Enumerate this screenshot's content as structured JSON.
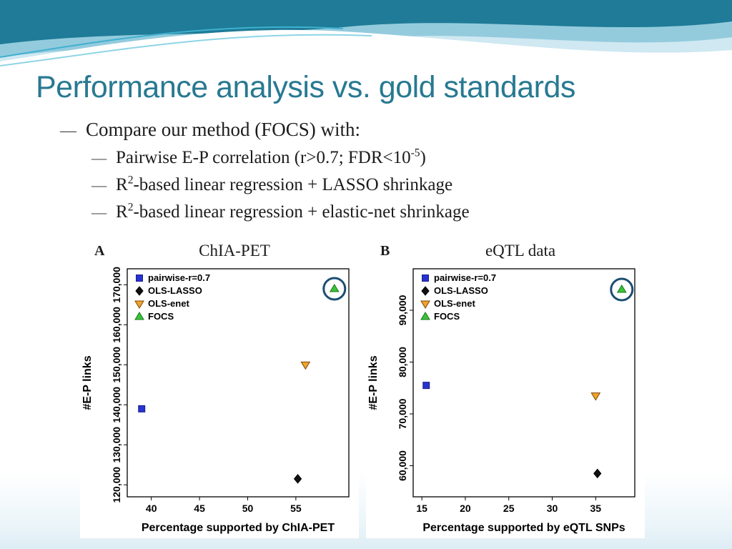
{
  "slide": {
    "title": "Performance analysis vs. gold standards",
    "bullet_char": "—",
    "bullet1": "Compare our method (FOCS) with:",
    "sub_bullets": {
      "b1": {
        "pre": "Pairwise E-P correlation (r>0.7; FDR<10",
        "sup": "-5",
        "post": ")"
      },
      "b2": {
        "pre": "R",
        "sup": "2",
        "post": "-based linear regression + LASSO shrinkage"
      },
      "b3": {
        "pre": "R",
        "sup": "2",
        "post": "-based linear regression + elastic-net shrinkage"
      }
    },
    "panels": {
      "a_label": "A",
      "b_label": "B"
    }
  },
  "colors": {
    "title": "#287992",
    "circle_annotation": "#1b4e73",
    "wave_dark": "#1f7b97",
    "wave_mid": "#93cbdd",
    "wave_light": "#cfe8f2"
  },
  "chart_data": [
    {
      "type": "scatter",
      "title": "ChIA-PET",
      "xlabel": "Percentage supported by ChIA-PET",
      "ylabel": "#E-P links",
      "xlim": [
        37.5,
        60.5
      ],
      "ylim": [
        117000,
        174000
      ],
      "xticks": [
        40,
        45,
        50,
        55
      ],
      "yticks": [
        120000,
        130000,
        140000,
        150000,
        160000,
        170000
      ],
      "legend_position": "top-left",
      "grid": false,
      "series": [
        {
          "name": "pairwise-r=0.7",
          "marker": "square",
          "color": "#2633cf",
          "edge": "#1a1f8c",
          "points": [
            [
              39,
              139000
            ]
          ]
        },
        {
          "name": "OLS-LASSO",
          "marker": "diamond",
          "color": "#111111",
          "edge": "#000000",
          "points": [
            [
              55.2,
              121500
            ]
          ]
        },
        {
          "name": "OLS-enet",
          "marker": "triangle-down",
          "color": "#f2a231",
          "edge": "#7a4a00",
          "points": [
            [
              56,
              150000
            ]
          ]
        },
        {
          "name": "FOCS",
          "marker": "triangle-up",
          "color": "#3cc13c",
          "edge": "#157a15",
          "points": [
            [
              59,
              169000
            ]
          ],
          "circled": true
        }
      ]
    },
    {
      "type": "scatter",
      "title": "eQTL data",
      "xlabel": "Percentage supported by eQTL SNPs",
      "ylabel": "#E-P links",
      "xlim": [
        14,
        39.5
      ],
      "ylim": [
        54000,
        98000
      ],
      "xticks": [
        15,
        20,
        25,
        30,
        35
      ],
      "yticks": [
        60000,
        70000,
        80000,
        90000
      ],
      "legend_position": "top-left",
      "grid": false,
      "series": [
        {
          "name": "pairwise-r=0.7",
          "marker": "square",
          "color": "#2633cf",
          "edge": "#1a1f8c",
          "points": [
            [
              15.5,
              75500
            ]
          ]
        },
        {
          "name": "OLS-LASSO",
          "marker": "diamond",
          "color": "#111111",
          "edge": "#000000",
          "points": [
            [
              35.2,
              58500
            ]
          ]
        },
        {
          "name": "OLS-enet",
          "marker": "triangle-down",
          "color": "#f2a231",
          "edge": "#7a4a00",
          "points": [
            [
              35,
              73500
            ]
          ]
        },
        {
          "name": "FOCS",
          "marker": "triangle-up",
          "color": "#3cc13c",
          "edge": "#157a15",
          "points": [
            [
              38,
              94000
            ]
          ],
          "circled": true
        }
      ]
    }
  ]
}
